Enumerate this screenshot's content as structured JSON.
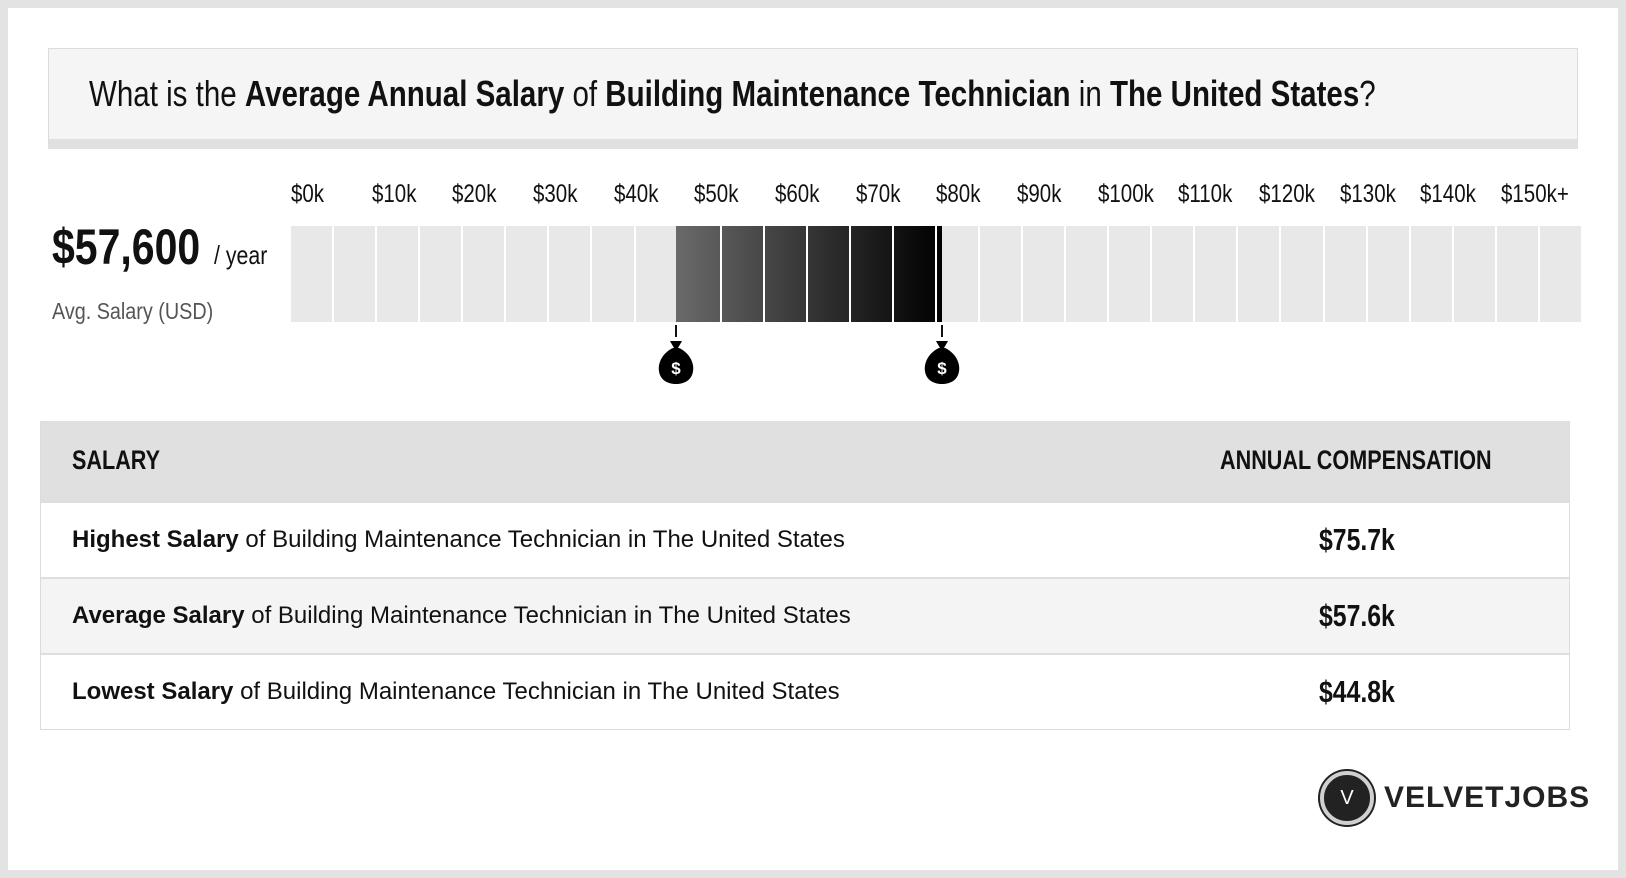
{
  "title": {
    "pre": "What is the ",
    "b1": "Average Annual Salary",
    "mid1": " of ",
    "b2": "Building Maintenance Technician",
    "mid2": " in ",
    "b3": "The United States",
    "post": "?"
  },
  "average": {
    "amount": "$57,600",
    "per": "/ year",
    "label": "Avg. Salary (USD)"
  },
  "chart_data": {
    "type": "bar",
    "subtype": "salary-range",
    "x_tick_labels": [
      "$0k",
      "$10k",
      "$20k",
      "$30k",
      "$40k",
      "$50k",
      "$60k",
      "$70k",
      "$80k",
      "$90k",
      "$100k",
      "$110k",
      "$120k",
      "$130k",
      "$140k",
      "$150k+"
    ],
    "xlim": [
      0,
      150
    ],
    "x_unit": "thousand USD",
    "segments": 30,
    "range_low": 44.8,
    "range_high": 75.7,
    "average": 57.6,
    "markers": [
      {
        "name": "lowest",
        "value": 44.8,
        "icon": "money-bag-icon"
      },
      {
        "name": "highest",
        "value": 75.7,
        "icon": "money-bag-icon"
      }
    ],
    "colors": {
      "empty": "#e8e8e8",
      "range_start": "#6a6a6a",
      "range_end": "#000000"
    }
  },
  "table": {
    "col1": "SALARY",
    "col2": "ANNUAL COMPENSATION",
    "rows": [
      {
        "bold": "Highest Salary",
        "rest": " of Building Maintenance Technician in The United States",
        "value": "$75.7k"
      },
      {
        "bold": "Average Salary",
        "rest": " of Building Maintenance Technician in The United States",
        "value": "$57.6k"
      },
      {
        "bold": "Lowest Salary",
        "rest": " of Building Maintenance Technician in The United States",
        "value": "$44.8k"
      }
    ]
  },
  "logo": {
    "letter": "V",
    "text": "VELVETJOBS"
  }
}
